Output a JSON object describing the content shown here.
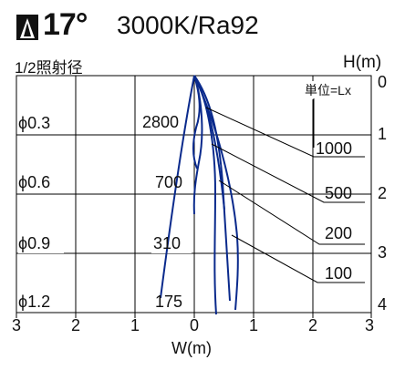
{
  "header": {
    "angle": "17°",
    "spec": "3000K/Ra92"
  },
  "labels": {
    "half_beam": "1/2照射径",
    "height_unit": "H(m)",
    "lux_unit": "単位=Lx",
    "width_unit": "W(m)"
  },
  "diameters": [
    "ϕ0.3",
    "ϕ0.6",
    "ϕ0.9",
    "ϕ1.2"
  ],
  "center_lux": [
    "2800",
    "700",
    "310",
    "175"
  ],
  "contour_lux": [
    "1000",
    "500",
    "200",
    "100"
  ],
  "height_ticks": [
    "0",
    "1",
    "2",
    "3",
    "4"
  ],
  "width_ticks": [
    "3",
    "2",
    "1",
    "0",
    "1",
    "2",
    "3"
  ],
  "colors": {
    "curve": "#0a2a8c",
    "grid": "#000000"
  }
}
